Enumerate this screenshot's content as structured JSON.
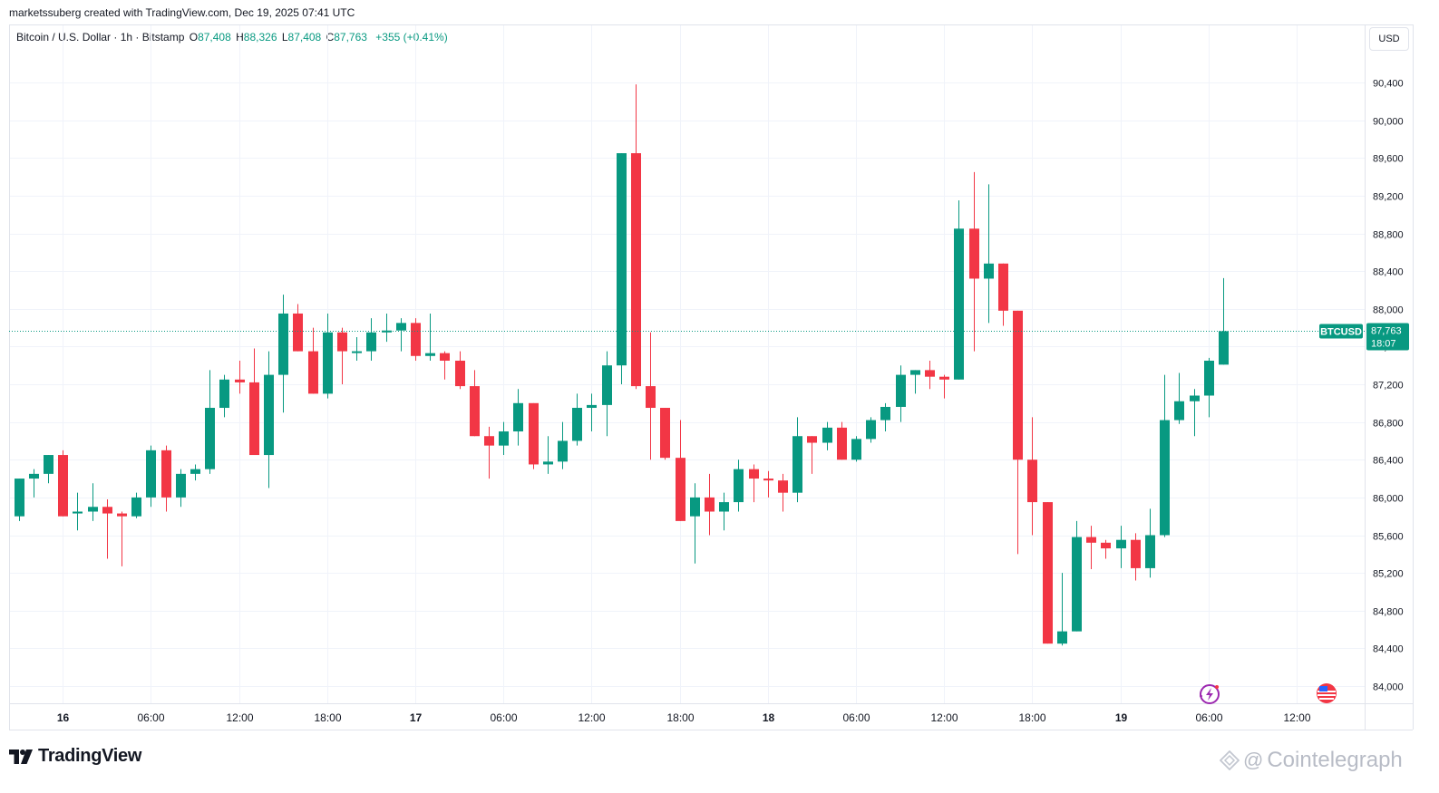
{
  "header": {
    "credit": "marketssuberg created with TradingView.com, Dec 19, 2025 07:41 UTC",
    "symbol": "Bitcoin / U.S. Dollar · 1h · Bitstamp",
    "open_label": "O",
    "open_value": "87,408",
    "high_label": "H",
    "high_value": "88,326",
    "low_label": "L",
    "low_value": "87,408",
    "close_label": "C",
    "close_value": "87,763",
    "change": "+355 (+0.41%)",
    "currency": "USD"
  },
  "price_tag": {
    "symbol": "BTCUSD",
    "price": "87,763",
    "countdown": "18:07"
  },
  "branding": {
    "logo_text": "TradingView",
    "watermark": "Cointelegraph"
  },
  "colors": {
    "up": "#089981",
    "down": "#f23645",
    "grid": "#f0f3fa",
    "axis_line": "#e0e3eb",
    "price_line": "#089981"
  },
  "chart_data": {
    "type": "candlestick",
    "ylim": [
      83800,
      90800
    ],
    "yticks": [
      "84,000",
      "84,400",
      "84,800",
      "85,200",
      "85,600",
      "86,000",
      "86,400",
      "86,800",
      "87,200",
      "87,600",
      "88,000",
      "88,400",
      "88,800",
      "89,200",
      "89,600",
      "90,000",
      "90,400"
    ],
    "ytick_values": [
      84000,
      84400,
      84800,
      85200,
      85600,
      86000,
      86400,
      86800,
      87200,
      87600,
      88000,
      88400,
      88800,
      89200,
      89600,
      90000,
      90400
    ],
    "xticks": [
      {
        "label": "16",
        "bar": 3,
        "bold": true
      },
      {
        "label": "06:00",
        "bar": 9,
        "bold": false
      },
      {
        "label": "12:00",
        "bar": 15,
        "bold": false
      },
      {
        "label": "18:00",
        "bar": 21,
        "bold": false
      },
      {
        "label": "17",
        "bar": 27,
        "bold": true
      },
      {
        "label": "06:00",
        "bar": 33,
        "bold": false
      },
      {
        "label": "12:00",
        "bar": 39,
        "bold": false
      },
      {
        "label": "18:00",
        "bar": 45,
        "bold": false
      },
      {
        "label": "18",
        "bar": 51,
        "bold": true
      },
      {
        "label": "06:00",
        "bar": 57,
        "bold": false
      },
      {
        "label": "12:00",
        "bar": 63,
        "bold": false
      },
      {
        "label": "18:00",
        "bar": 69,
        "bold": false
      },
      {
        "label": "19",
        "bar": 75,
        "bold": true
      },
      {
        "label": "06:00",
        "bar": 81,
        "bold": false
      },
      {
        "label": "12:00",
        "bar": 87,
        "bold": false
      }
    ],
    "last_price": 87763,
    "candles": [
      [
        85800,
        86200,
        85750,
        86200
      ],
      [
        86200,
        86300,
        86000,
        86250
      ],
      [
        86250,
        86450,
        86150,
        86450
      ],
      [
        86450,
        86500,
        85800,
        85800
      ],
      [
        85830,
        86050,
        85650,
        85850
      ],
      [
        85850,
        86150,
        85750,
        85900
      ],
      [
        85900,
        85980,
        85350,
        85830
      ],
      [
        85830,
        85850,
        85270,
        85800
      ],
      [
        85800,
        86050,
        85780,
        86000
      ],
      [
        86000,
        86550,
        85900,
        86500
      ],
      [
        86500,
        86550,
        85850,
        86000
      ],
      [
        86000,
        86300,
        85900,
        86250
      ],
      [
        86250,
        86350,
        86180,
        86300
      ],
      [
        86300,
        87350,
        86250,
        86950
      ],
      [
        86950,
        87300,
        86850,
        87250
      ],
      [
        87250,
        87450,
        87100,
        87220
      ],
      [
        87220,
        87580,
        86450,
        86450
      ],
      [
        86450,
        87550,
        86100,
        87300
      ],
      [
        87300,
        88150,
        86900,
        87950
      ],
      [
        87950,
        88050,
        87550,
        87550
      ],
      [
        87550,
        87800,
        87100,
        87100
      ],
      [
        87100,
        87950,
        87050,
        87750
      ],
      [
        87750,
        87800,
        87200,
        87550
      ],
      [
        87550,
        87700,
        87450,
        87550
      ],
      [
        87550,
        87900,
        87450,
        87750
      ],
      [
        87750,
        87950,
        87650,
        87770
      ],
      [
        87770,
        87900,
        87550,
        87850
      ],
      [
        87850,
        87900,
        87450,
        87500
      ],
      [
        87500,
        87950,
        87450,
        87530
      ],
      [
        87530,
        87550,
        87250,
        87450
      ],
      [
        87450,
        87550,
        87150,
        87180
      ],
      [
        87180,
        87350,
        86650,
        86650
      ],
      [
        86650,
        86750,
        86200,
        86550
      ],
      [
        86550,
        86800,
        86450,
        86700
      ],
      [
        86700,
        87150,
        86550,
        87000
      ],
      [
        87000,
        87000,
        86300,
        86350
      ],
      [
        86350,
        86650,
        86250,
        86380
      ],
      [
        86380,
        86800,
        86300,
        86600
      ],
      [
        86600,
        87100,
        86550,
        86950
      ],
      [
        86950,
        87100,
        86700,
        86980
      ],
      [
        86980,
        87550,
        86650,
        87400
      ],
      [
        87400,
        89650,
        87200,
        89650
      ],
      [
        89650,
        90380,
        87150,
        87180
      ],
      [
        87180,
        87750,
        86400,
        86950
      ],
      [
        86950,
        86950,
        86400,
        86420
      ],
      [
        86420,
        86820,
        85750,
        85750
      ],
      [
        85800,
        86150,
        85300,
        86000
      ],
      [
        86000,
        86250,
        85600,
        85850
      ],
      [
        85850,
        86050,
        85650,
        85950
      ],
      [
        85950,
        86400,
        85850,
        86300
      ],
      [
        86300,
        86350,
        85950,
        86200
      ],
      [
        86200,
        86280,
        86000,
        86180
      ],
      [
        86180,
        86250,
        85850,
        86050
      ],
      [
        86050,
        86850,
        85950,
        86650
      ],
      [
        86650,
        86650,
        86250,
        86580
      ],
      [
        86580,
        86800,
        86500,
        86740
      ],
      [
        86740,
        86800,
        86400,
        86400
      ],
      [
        86400,
        86650,
        86380,
        86620
      ],
      [
        86620,
        86850,
        86580,
        86820
      ],
      [
        86820,
        87000,
        86700,
        86960
      ],
      [
        86960,
        87400,
        86800,
        87300
      ],
      [
        87300,
        87350,
        87100,
        87350
      ],
      [
        87350,
        87450,
        87150,
        87280
      ],
      [
        87280,
        87300,
        87050,
        87250
      ],
      [
        87250,
        89150,
        87250,
        88850
      ],
      [
        88850,
        89450,
        87550,
        88320
      ],
      [
        88320,
        89320,
        87850,
        88480
      ],
      [
        88480,
        88480,
        87820,
        87980
      ],
      [
        87980,
        87980,
        85400,
        86400
      ],
      [
        86400,
        86850,
        85600,
        85950
      ],
      [
        85950,
        85950,
        84450,
        84450
      ],
      [
        84450,
        85200,
        84430,
        84580
      ],
      [
        84580,
        85750,
        84580,
        85580
      ],
      [
        85580,
        85700,
        85240,
        85520
      ],
      [
        85520,
        85550,
        85350,
        85460
      ],
      [
        85460,
        85700,
        85250,
        85550
      ],
      [
        85550,
        85620,
        85120,
        85250
      ],
      [
        85250,
        85880,
        85150,
        85600
      ],
      [
        85600,
        87300,
        85580,
        86820
      ],
      [
        86820,
        87320,
        86780,
        87020
      ],
      [
        87020,
        87150,
        86650,
        87080
      ],
      [
        87080,
        87480,
        86850,
        87450
      ],
      [
        87408,
        88326,
        87408,
        87763
      ]
    ]
  }
}
